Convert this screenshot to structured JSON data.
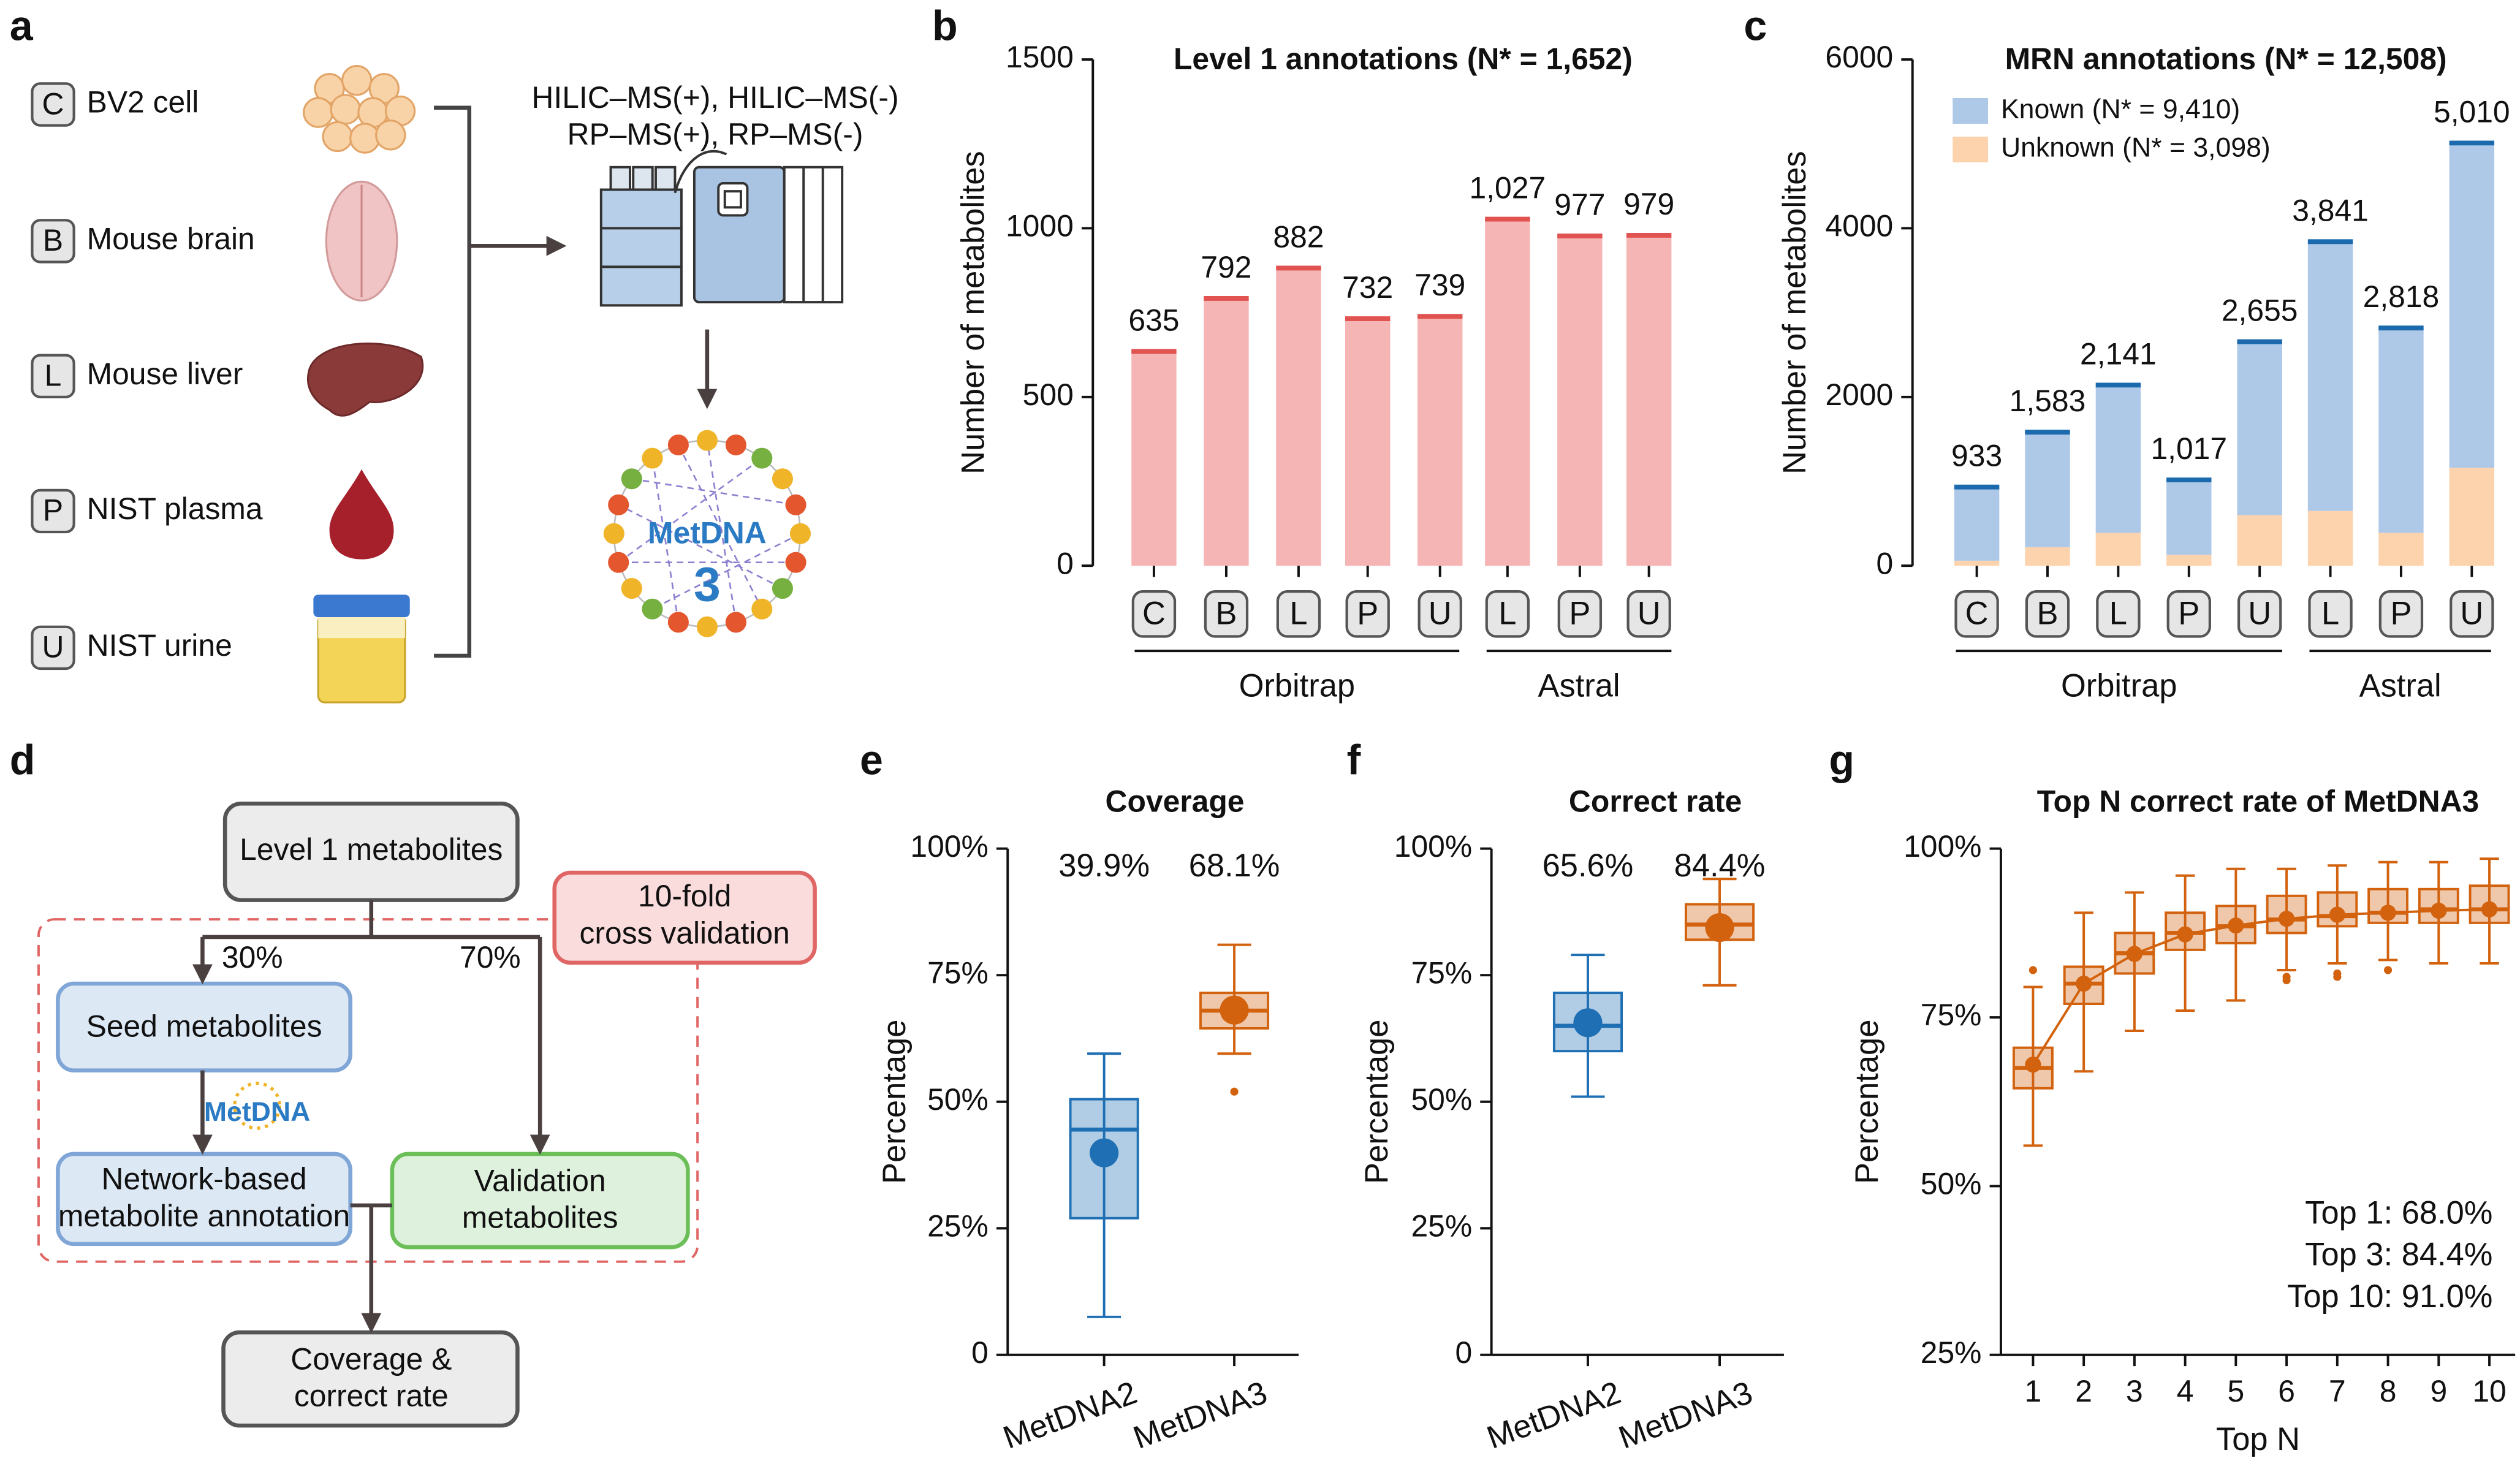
{
  "panel_a": {
    "label": "a",
    "samples": [
      {
        "code": "C",
        "name": "BV2 cell"
      },
      {
        "code": "B",
        "name": "Mouse brain"
      },
      {
        "code": "L",
        "name": "Mouse liver"
      },
      {
        "code": "P",
        "name": "NIST plasma"
      },
      {
        "code": "U",
        "name": "NIST urine"
      }
    ],
    "methods": [
      "HILIC–MS(+), HILIC–MS(-)",
      "RP–MS(+), RP–MS(-)"
    ],
    "logo": {
      "name": "MetDNA",
      "version": "3"
    }
  },
  "panel_d": {
    "label": "d",
    "nodes": [
      {
        "label": [
          "Level 1 metabolites"
        ]
      },
      {
        "label": [
          "10-fold",
          "cross validation"
        ]
      },
      {
        "label": [
          "Seed metabolites"
        ]
      },
      {
        "label": [
          "Network-based",
          "metabolite annotation"
        ]
      },
      {
        "label": [
          "Validation",
          "metabolites"
        ]
      },
      {
        "label": [
          "Coverage &",
          "correct rate"
        ]
      }
    ],
    "edge_labels": [
      "30%",
      "70%"
    ],
    "logo": "MetDNA"
  },
  "chart_data": [
    {
      "panel": "b",
      "type": "bar",
      "title": "Level 1 annotations (N* = 1,652)",
      "ylabel": "Number of metabolites",
      "categories": [
        "C",
        "B",
        "L",
        "P",
        "U",
        "L",
        "P",
        "U"
      ],
      "groups": [
        "Orbitrap",
        "Astral"
      ],
      "values": [
        635,
        792,
        882,
        732,
        739,
        1027,
        977,
        979
      ],
      "value_labels": [
        "635",
        "792",
        "882",
        "732",
        "739",
        "1,027",
        "977",
        "979"
      ],
      "color": "#f5b5b4",
      "cap_color": "#e05350",
      "ylim": [
        0,
        1500
      ],
      "yticks": [
        0,
        500,
        1000,
        1500
      ]
    },
    {
      "panel": "c",
      "type": "bar",
      "stacked": true,
      "title": "MRN annotations (N* = 12,508)",
      "ylabel": "Number of metabolites",
      "categories": [
        "C",
        "B",
        "L",
        "P",
        "U",
        "L",
        "P",
        "U"
      ],
      "groups": [
        "Orbitrap",
        "Astral"
      ],
      "series": [
        {
          "name": "Known (N* = 9,410)",
          "color": "#aec9e8",
          "values": [
            873,
            1363,
            1751,
            887,
            2055,
            3191,
            2428,
            3850
          ]
        },
        {
          "name": "Unknown (N* = 3,098)",
          "color": "#fdd3ae",
          "values": [
            60,
            220,
            390,
            130,
            600,
            650,
            390,
            1160
          ]
        }
      ],
      "totals": [
        933,
        1583,
        2141,
        1017,
        2655,
        3841,
        2818,
        5010
      ],
      "total_labels": [
        "933",
        "1,583",
        "2,141",
        "1,017",
        "2,655",
        "3,841",
        "2,818",
        "5,010"
      ],
      "cap_color": "#1a6aad",
      "ylim": [
        0,
        6000
      ],
      "yticks": [
        0,
        2000,
        4000,
        6000
      ]
    },
    {
      "panel": "e",
      "type": "box",
      "title": "Coverage",
      "ylabel": "Percentage",
      "categories": [
        "MetDNA2",
        "MetDNA3"
      ],
      "colors": [
        "#1f6fb4",
        "#d2620e"
      ],
      "boxes": [
        {
          "whisker_low": 7.5,
          "q1": 27,
          "median": 44.5,
          "q3": 50.5,
          "whisker_high": 59.5,
          "outliers": []
        },
        {
          "whisker_low": 59.5,
          "q1": 64.5,
          "median": 68,
          "q3": 71.5,
          "whisker_high": 81,
          "outliers": [
            52
          ]
        }
      ],
      "means": [
        39.9,
        68.1
      ],
      "mean_labels": [
        "39.9%",
        "68.1%"
      ],
      "ylim": [
        0,
        100
      ],
      "yticks": [
        0,
        {
          "value": 25,
          "label": "25%"
        },
        {
          "value": 50,
          "label": "50%"
        },
        {
          "value": 75,
          "label": "75%"
        },
        {
          "value": 100,
          "label": "100%"
        }
      ]
    },
    {
      "panel": "f",
      "type": "box",
      "title": "Correct rate",
      "ylabel": "Percentage",
      "categories": [
        "MetDNA2",
        "MetDNA3"
      ],
      "colors": [
        "#1f6fb4",
        "#d2620e"
      ],
      "boxes": [
        {
          "whisker_low": 51,
          "q1": 60,
          "median": 65,
          "q3": 71.5,
          "whisker_high": 79,
          "outliers": []
        },
        {
          "whisker_low": 73,
          "q1": 82,
          "median": 85,
          "q3": 89,
          "whisker_high": 94,
          "outliers": []
        }
      ],
      "means": [
        65.6,
        84.4
      ],
      "mean_labels": [
        "65.6%",
        "84.4%"
      ],
      "ylim": [
        0,
        100
      ],
      "yticks": [
        0,
        {
          "value": 25,
          "label": "25%"
        },
        {
          "value": 50,
          "label": "50%"
        },
        {
          "value": 75,
          "label": "75%"
        },
        {
          "value": 100,
          "label": "100%"
        }
      ]
    },
    {
      "panel": "g",
      "type": "box",
      "mean_line": true,
      "title": "Top N correct rate of MetDNA3",
      "ylabel": "Percentage",
      "xlabel": "Top N",
      "categories": [
        "1",
        "2",
        "3",
        "4",
        "5",
        "6",
        "7",
        "8",
        "9",
        "10"
      ],
      "color": "#d2620e",
      "boxes": [
        {
          "whisker_low": 56,
          "q1": 64.5,
          "median": 67.5,
          "q3": 70.5,
          "whisker_high": 79.5,
          "outliers": [
            82
          ]
        },
        {
          "whisker_low": 67,
          "q1": 77,
          "median": 80,
          "q3": 82.5,
          "whisker_high": 90.5,
          "outliers": []
        },
        {
          "whisker_low": 73,
          "q1": 81.5,
          "median": 84.5,
          "q3": 87.5,
          "whisker_high": 93.5,
          "outliers": []
        },
        {
          "whisker_low": 76,
          "q1": 85,
          "median": 87.5,
          "q3": 90.5,
          "whisker_high": 96,
          "outliers": []
        },
        {
          "whisker_low": 77.5,
          "q1": 86,
          "median": 88.5,
          "q3": 91.5,
          "whisker_high": 97,
          "outliers": []
        },
        {
          "whisker_low": 82,
          "q1": 87.5,
          "median": 89.5,
          "q3": 93,
          "whisker_high": 97,
          "outliers": [
            80.5,
            81
          ]
        },
        {
          "whisker_low": 83,
          "q1": 88.5,
          "median": 90,
          "q3": 93.5,
          "whisker_high": 97.5,
          "outliers": [
            81,
            81.5
          ]
        },
        {
          "whisker_low": 83.5,
          "q1": 89,
          "median": 90.5,
          "q3": 94,
          "whisker_high": 98,
          "outliers": [
            82
          ]
        },
        {
          "whisker_low": 83,
          "q1": 89,
          "median": 91,
          "q3": 94,
          "whisker_high": 98,
          "outliers": []
        },
        {
          "whisker_low": 83,
          "q1": 89,
          "median": 91,
          "q3": 94.5,
          "whisker_high": 98.5,
          "outliers": []
        }
      ],
      "means": [
        68.0,
        80,
        84.4,
        87.3,
        88.6,
        89.6,
        90.2,
        90.5,
        90.8,
        91.0
      ],
      "annotations": [
        "Top 1: 68.0%",
        "Top 3: 84.4%",
        "Top 10: 91.0%"
      ],
      "ylim": [
        25,
        100
      ],
      "yticks": [
        {
          "value": 25,
          "label": "25%"
        },
        {
          "value": 50,
          "label": "50%"
        },
        {
          "value": 75,
          "label": "75%"
        },
        {
          "value": 100,
          "label": "100%"
        }
      ]
    }
  ]
}
